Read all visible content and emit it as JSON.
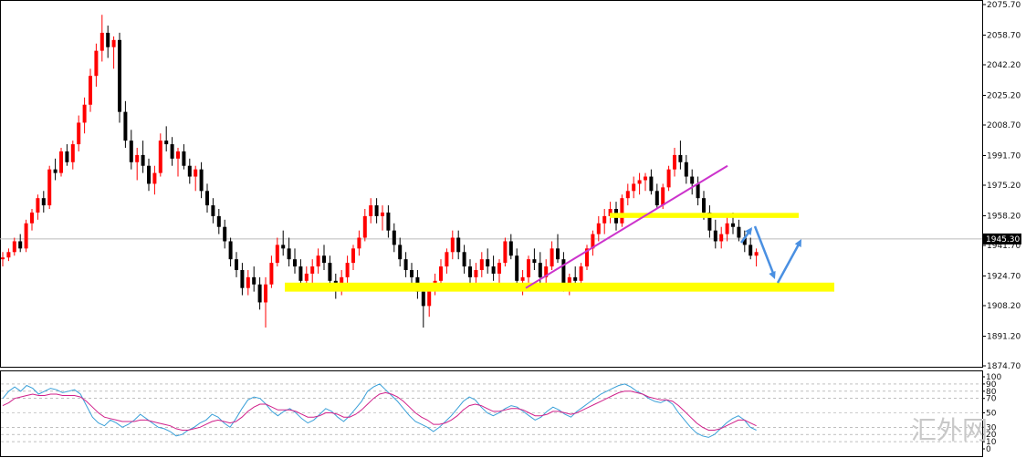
{
  "watermark": "汇外网",
  "current_price_label": "1945.30",
  "colors": {
    "bull": "#ff0000",
    "bear": "#000000",
    "support_zone": "#ffff00",
    "trendline": "#cc33cc",
    "arrow": "#4a90e2",
    "osc_fast": "#3aa0d8",
    "osc_slow": "#d0208a",
    "grid": "#999999"
  },
  "chart_data": [
    {
      "type": "candlestick",
      "title": "",
      "ylim": [
        1874.7,
        2075.7
      ],
      "y_ticks": [
        "2075.70",
        "2058.70",
        "2042.20",
        "2025.20",
        "2008.70",
        "1991.70",
        "1975.20",
        "1958.20",
        "1941.70",
        "1924.70",
        "1908.20",
        "1891.20",
        "1874.70"
      ],
      "current_price": 1945.3,
      "candles": [
        [
          1934,
          1938,
          1930,
          1935
        ],
        [
          1935,
          1940,
          1933,
          1938
        ],
        [
          1938,
          1946,
          1936,
          1944
        ],
        [
          1944,
          1948,
          1938,
          1940
        ],
        [
          1940,
          1956,
          1938,
          1954
        ],
        [
          1954,
          1962,
          1950,
          1960
        ],
        [
          1960,
          1970,
          1956,
          1968
        ],
        [
          1968,
          1972,
          1960,
          1964
        ],
        [
          1964,
          1986,
          1962,
          1984
        ],
        [
          1984,
          1990,
          1978,
          1982
        ],
        [
          1982,
          1996,
          1980,
          1994
        ],
        [
          1994,
          1998,
          1986,
          1988
        ],
        [
          1988,
          2000,
          1984,
          1998
        ],
        [
          1998,
          2014,
          1994,
          2010
        ],
        [
          2010,
          2024,
          2004,
          2020
        ],
        [
          2020,
          2040,
          2016,
          2036
        ],
        [
          2036,
          2054,
          2030,
          2050
        ],
        [
          2050,
          2070,
          2044,
          2060
        ],
        [
          2060,
          2064,
          2046,
          2052
        ],
        [
          2052,
          2058,
          2040,
          2056
        ],
        [
          2056,
          2060,
          2010,
          2016
        ],
        [
          2016,
          2022,
          1996,
          2000
        ],
        [
          2000,
          2006,
          1984,
          1988
        ],
        [
          1988,
          1996,
          1978,
          1992
        ],
        [
          1992,
          2000,
          1982,
          1986
        ],
        [
          1986,
          1990,
          1972,
          1976
        ],
        [
          1976,
          1986,
          1970,
          1982
        ],
        [
          1982,
          2004,
          1980,
          2000
        ],
        [
          2000,
          2008,
          1994,
          1998
        ],
        [
          1998,
          2002,
          1986,
          1990
        ],
        [
          1990,
          1996,
          1980,
          1994
        ],
        [
          1994,
          1998,
          1984,
          1986
        ],
        [
          1986,
          1990,
          1976,
          1980
        ],
        [
          1980,
          1986,
          1972,
          1984
        ],
        [
          1984,
          1988,
          1968,
          1972
        ],
        [
          1972,
          1976,
          1960,
          1964
        ],
        [
          1964,
          1968,
          1954,
          1958
        ],
        [
          1958,
          1962,
          1948,
          1952
        ],
        [
          1952,
          1956,
          1940,
          1944
        ],
        [
          1944,
          1946,
          1930,
          1934
        ],
        [
          1934,
          1938,
          1924,
          1928
        ],
        [
          1928,
          1932,
          1914,
          1918
        ],
        [
          1918,
          1928,
          1914,
          1924
        ],
        [
          1924,
          1930,
          1916,
          1920
        ],
        [
          1920,
          1924,
          1906,
          1910
        ],
        [
          1910,
          1924,
          1896,
          1920
        ],
        [
          1920,
          1936,
          1918,
          1932
        ],
        [
          1932,
          1946,
          1930,
          1942
        ],
        [
          1942,
          1950,
          1936,
          1940
        ],
        [
          1940,
          1946,
          1930,
          1934
        ],
        [
          1934,
          1940,
          1926,
          1930
        ],
        [
          1930,
          1934,
          1918,
          1922
        ],
        [
          1922,
          1930,
          1918,
          1926
        ],
        [
          1926,
          1934,
          1920,
          1930
        ],
        [
          1930,
          1940,
          1926,
          1936
        ],
        [
          1936,
          1942,
          1928,
          1932
        ],
        [
          1932,
          1936,
          1918,
          1922
        ],
        [
          1922,
          1926,
          1912,
          1918
        ],
        [
          1918,
          1928,
          1914,
          1924
        ],
        [
          1924,
          1936,
          1920,
          1932
        ],
        [
          1932,
          1942,
          1928,
          1940
        ],
        [
          1940,
          1950,
          1936,
          1946
        ],
        [
          1946,
          1962,
          1944,
          1958
        ],
        [
          1958,
          1968,
          1954,
          1964
        ],
        [
          1964,
          1968,
          1954,
          1958
        ],
        [
          1958,
          1964,
          1950,
          1960
        ],
        [
          1960,
          1964,
          1946,
          1950
        ],
        [
          1950,
          1954,
          1938,
          1942
        ],
        [
          1942,
          1946,
          1930,
          1934
        ],
        [
          1934,
          1938,
          1924,
          1928
        ],
        [
          1928,
          1932,
          1918,
          1924
        ],
        [
          1924,
          1928,
          1912,
          1916
        ],
        [
          1916,
          1920,
          1896,
          1908
        ],
        [
          1908,
          1920,
          1902,
          1918
        ],
        [
          1918,
          1926,
          1914,
          1922
        ],
        [
          1922,
          1934,
          1918,
          1930
        ],
        [
          1930,
          1940,
          1926,
          1938
        ],
        [
          1938,
          1950,
          1934,
          1946
        ],
        [
          1946,
          1950,
          1934,
          1938
        ],
        [
          1938,
          1942,
          1926,
          1930
        ],
        [
          1930,
          1934,
          1920,
          1924
        ],
        [
          1924,
          1932,
          1918,
          1928
        ],
        [
          1928,
          1938,
          1924,
          1934
        ],
        [
          1934,
          1940,
          1926,
          1930
        ],
        [
          1930,
          1936,
          1922,
          1926
        ],
        [
          1926,
          1934,
          1918,
          1932
        ],
        [
          1932,
          1946,
          1930,
          1944
        ],
        [
          1944,
          1948,
          1934,
          1936
        ],
        [
          1936,
          1940,
          1920,
          1922
        ],
        [
          1922,
          1928,
          1914,
          1924
        ],
        [
          1924,
          1936,
          1920,
          1934
        ],
        [
          1934,
          1940,
          1928,
          1932
        ],
        [
          1932,
          1938,
          1920,
          1924
        ],
        [
          1924,
          1934,
          1918,
          1930
        ],
        [
          1930,
          1944,
          1928,
          1940
        ],
        [
          1940,
          1948,
          1932,
          1934
        ],
        [
          1934,
          1938,
          1916,
          1918
        ],
        [
          1918,
          1926,
          1914,
          1924
        ],
        [
          1924,
          1930,
          1918,
          1922
        ],
        [
          1922,
          1932,
          1918,
          1930
        ],
        [
          1930,
          1942,
          1928,
          1940
        ],
        [
          1940,
          1950,
          1936,
          1948
        ],
        [
          1948,
          1958,
          1944,
          1954
        ],
        [
          1954,
          1962,
          1948,
          1958
        ],
        [
          1958,
          1966,
          1954,
          1962
        ],
        [
          1962,
          1966,
          1950,
          1954
        ],
        [
          1954,
          1970,
          1952,
          1968
        ],
        [
          1968,
          1976,
          1964,
          1972
        ],
        [
          1972,
          1980,
          1968,
          1976
        ],
        [
          1976,
          1982,
          1970,
          1978
        ],
        [
          1978,
          1982,
          1972,
          1980
        ],
        [
          1980,
          1984,
          1970,
          1972
        ],
        [
          1972,
          1976,
          1962,
          1964
        ],
        [
          1964,
          1976,
          1962,
          1974
        ],
        [
          1974,
          1986,
          1972,
          1984
        ],
        [
          1984,
          1996,
          1980,
          1992
        ],
        [
          1992,
          2000,
          1984,
          1988
        ],
        [
          1988,
          1992,
          1976,
          1980
        ],
        [
          1980,
          1984,
          1970,
          1976
        ],
        [
          1976,
          1980,
          1964,
          1968
        ],
        [
          1968,
          1972,
          1956,
          1960
        ],
        [
          1960,
          1964,
          1946,
          1950
        ],
        [
          1950,
          1956,
          1940,
          1944
        ],
        [
          1944,
          1952,
          1940,
          1948
        ],
        [
          1948,
          1958,
          1944,
          1954
        ],
        [
          1954,
          1960,
          1948,
          1952
        ],
        [
          1952,
          1956,
          1944,
          1946
        ],
        [
          1946,
          1950,
          1938,
          1942
        ],
        [
          1942,
          1946,
          1934,
          1936
        ],
        [
          1936,
          1940,
          1930,
          1938
        ]
      ]
    },
    {
      "type": "line",
      "ylim": [
        0,
        100
      ],
      "y_ticks": [
        "100",
        "90",
        "80",
        "70",
        "50",
        "30",
        "20",
        "10",
        "0"
      ],
      "levels": [
        100,
        90,
        80,
        70,
        50,
        30,
        20,
        10,
        0
      ],
      "series": [
        {
          "values": [
            70,
            80,
            86,
            80,
            88,
            84,
            76,
            80,
            84,
            82,
            78,
            80,
            82,
            76,
            60,
            44,
            36,
            32,
            40,
            36,
            30,
            34,
            40,
            48,
            42,
            36,
            30,
            28,
            24,
            18,
            20,
            26,
            30,
            36,
            40,
            48,
            44,
            36,
            30,
            42,
            56,
            68,
            72,
            70,
            62,
            52,
            46,
            52,
            56,
            50,
            42,
            36,
            40,
            48,
            56,
            52,
            44,
            38,
            46,
            56,
            66,
            80,
            86,
            90,
            82,
            74,
            66,
            56,
            46,
            38,
            34,
            30,
            24,
            30,
            38,
            46,
            56,
            66,
            72,
            68,
            58,
            50,
            46,
            50,
            56,
            60,
            58,
            52,
            46,
            40,
            44,
            52,
            58,
            54,
            48,
            44,
            52,
            58,
            64,
            70,
            76,
            80,
            84,
            88,
            90,
            86,
            80,
            76,
            70,
            66,
            64,
            68,
            62,
            50,
            40,
            30,
            22,
            18,
            16,
            20,
            28,
            36,
            42,
            46,
            40,
            30,
            26
          ]
        },
        {
          "values": [
            60,
            64,
            70,
            72,
            74,
            76,
            74,
            74,
            76,
            76,
            74,
            74,
            74,
            72,
            66,
            58,
            50,
            44,
            42,
            40,
            38,
            38,
            38,
            40,
            40,
            38,
            36,
            34,
            32,
            28,
            26,
            26,
            28,
            30,
            34,
            38,
            40,
            38,
            36,
            38,
            44,
            52,
            58,
            62,
            62,
            58,
            54,
            54,
            54,
            52,
            48,
            44,
            44,
            46,
            50,
            50,
            48,
            44,
            44,
            48,
            54,
            62,
            70,
            76,
            78,
            76,
            72,
            66,
            58,
            50,
            44,
            40,
            34,
            34,
            36,
            40,
            46,
            54,
            60,
            62,
            60,
            56,
            52,
            52,
            54,
            56,
            56,
            54,
            50,
            46,
            46,
            48,
            52,
            52,
            50,
            48,
            50,
            54,
            58,
            62,
            66,
            70,
            74,
            78,
            80,
            80,
            78,
            76,
            72,
            70,
            68,
            68,
            66,
            60,
            52,
            44,
            36,
            30,
            26,
            26,
            28,
            32,
            36,
            40,
            40,
            36,
            32
          ]
        }
      ]
    }
  ]
}
